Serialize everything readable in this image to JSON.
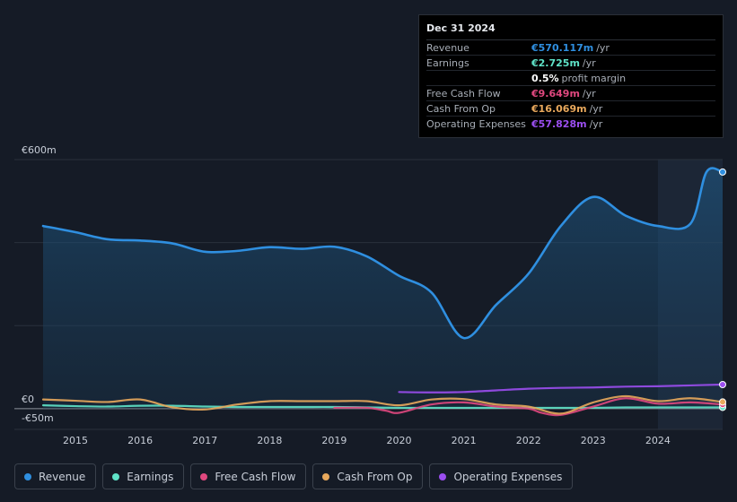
{
  "tooltip": {
    "date": "Dec 31 2024",
    "rows": [
      {
        "label": "Revenue",
        "value": "€570.117m",
        "unit": "/yr",
        "color": "#2f8fe0"
      },
      {
        "label": "Earnings",
        "value": "€2.725m",
        "unit": "/yr",
        "color": "#5fe3c8"
      },
      {
        "label": "",
        "value": "0.5%",
        "unit": "profit margin",
        "color": "#ffffff"
      },
      {
        "label": "Free Cash Flow",
        "value": "€9.649m",
        "unit": "/yr",
        "color": "#e0487f"
      },
      {
        "label": "Cash From Op",
        "value": "€16.069m",
        "unit": "/yr",
        "color": "#e8a85c"
      },
      {
        "label": "Operating Expenses",
        "value": "€57.828m",
        "unit": "/yr",
        "color": "#9b4ef0"
      }
    ]
  },
  "legend": [
    {
      "label": "Revenue",
      "color": "#2f8fe0"
    },
    {
      "label": "Earnings",
      "color": "#5fe3c8"
    },
    {
      "label": "Free Cash Flow",
      "color": "#e0487f"
    },
    {
      "label": "Cash From Op",
      "color": "#e8a85c"
    },
    {
      "label": "Operating Expenses",
      "color": "#9b4ef0"
    }
  ],
  "chart_data": {
    "type": "line",
    "y_tick_labels": [
      "€600m",
      "€0",
      "-€50m"
    ],
    "ylim": [
      -50,
      600
    ],
    "x_tick_labels": [
      "2015",
      "2016",
      "2017",
      "2018",
      "2019",
      "2020",
      "2021",
      "2022",
      "2023",
      "2024"
    ],
    "xlim": [
      2014.5,
      2025.0
    ],
    "highlight_start": 2024.0,
    "series": [
      {
        "name": "Revenue",
        "color": "#2f8fe0",
        "fill": true,
        "x": [
          2014.5,
          2015.0,
          2015.5,
          2016.0,
          2016.5,
          2017.0,
          2017.5,
          2018.0,
          2018.5,
          2019.0,
          2019.5,
          2020.0,
          2020.5,
          2021.0,
          2021.5,
          2022.0,
          2022.5,
          2023.0,
          2023.5,
          2024.0,
          2024.5,
          2024.75,
          2025.0
        ],
        "y": [
          440,
          425,
          408,
          405,
          398,
          378,
          380,
          389,
          385,
          390,
          367,
          320,
          280,
          170,
          250,
          325,
          440,
          510,
          465,
          440,
          445,
          570,
          570
        ]
      },
      {
        "name": "Earnings",
        "color": "#5fe3c8",
        "fill": false,
        "x": [
          2014.5,
          2015.0,
          2015.5,
          2016.0,
          2016.5,
          2017.0,
          2017.5,
          2018.0,
          2018.5,
          2019.0,
          2019.5,
          2020.0,
          2020.5,
          2021.0,
          2021.5,
          2022.0,
          2022.5,
          2023.0,
          2023.5,
          2024.0,
          2024.5,
          2025.0
        ],
        "y": [
          8,
          6,
          5,
          7,
          7,
          5,
          4,
          4,
          4,
          4,
          3,
          2,
          2,
          2,
          2,
          2,
          2,
          2,
          3,
          3,
          3,
          3
        ]
      },
      {
        "name": "Free Cash Flow",
        "color": "#e0487f",
        "fill": false,
        "x": [
          2019.0,
          2019.5,
          2019.8,
          2020.0,
          2020.5,
          2021.0,
          2021.5,
          2022.0,
          2022.2,
          2022.5,
          2023.0,
          2023.5,
          2024.0,
          2024.5,
          2025.0
        ],
        "y": [
          2,
          2,
          -5,
          -10,
          10,
          15,
          5,
          0,
          -10,
          -15,
          5,
          25,
          12,
          15,
          10
        ]
      },
      {
        "name": "Cash From Op",
        "color": "#e8a85c",
        "fill": false,
        "x": [
          2014.5,
          2015.0,
          2015.5,
          2016.0,
          2016.5,
          2017.0,
          2017.5,
          2018.0,
          2018.5,
          2019.0,
          2019.5,
          2020.0,
          2020.5,
          2021.0,
          2021.5,
          2022.0,
          2022.5,
          2023.0,
          2023.5,
          2024.0,
          2024.5,
          2025.0
        ],
        "y": [
          22,
          19,
          16,
          22,
          3,
          -2,
          10,
          18,
          18,
          18,
          18,
          8,
          22,
          23,
          10,
          5,
          -12,
          15,
          30,
          18,
          25,
          16
        ]
      },
      {
        "name": "Operating Expenses",
        "color": "#9b4ef0",
        "fill": false,
        "x": [
          2020.0,
          2020.5,
          2021.0,
          2021.5,
          2022.0,
          2022.5,
          2023.0,
          2023.5,
          2024.0,
          2024.5,
          2025.0
        ],
        "y": [
          40,
          39,
          40,
          44,
          48,
          50,
          51,
          53,
          54,
          56,
          58
        ]
      }
    ]
  }
}
